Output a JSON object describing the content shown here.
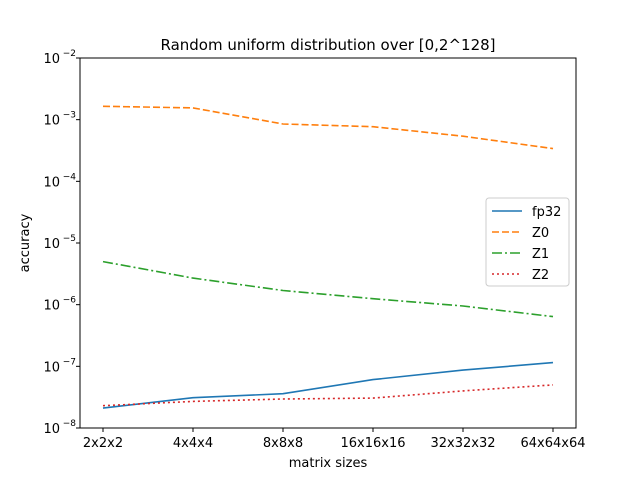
{
  "chart_data": {
    "type": "line",
    "title": "Random uniform distribution over [0,2^128]",
    "xlabel": "matrix sizes",
    "ylabel": "accuracy",
    "yscale": "log",
    "ylim": [
      1e-08,
      0.01
    ],
    "grid": false,
    "legend_position": "center-right",
    "categories": [
      "2x2x2",
      "4x4x4",
      "8x8x8",
      "16x16x16",
      "32x32x32",
      "64x64x64"
    ],
    "y_ticks": [
      {
        "value": 1e-08,
        "base": "10",
        "exp": "−8"
      },
      {
        "value": 1e-07,
        "base": "10",
        "exp": "−7"
      },
      {
        "value": 1e-06,
        "base": "10",
        "exp": "−6"
      },
      {
        "value": 1e-05,
        "base": "10",
        "exp": "−5"
      },
      {
        "value": 0.0001,
        "base": "10",
        "exp": "−4"
      },
      {
        "value": 0.001,
        "base": "10",
        "exp": "−3"
      },
      {
        "value": 0.01,
        "base": "10",
        "exp": "−2"
      }
    ],
    "series": [
      {
        "name": "fp32",
        "color": "#1f77b4",
        "dash": "solid",
        "values": [
          2.1e-08,
          3.1e-08,
          3.6e-08,
          6.1e-08,
          8.7e-08,
          1.15e-07
        ]
      },
      {
        "name": "Z0",
        "color": "#ff7f0e",
        "dash": "dashed",
        "values": [
          0.00165,
          0.00155,
          0.00085,
          0.00077,
          0.00054,
          0.00034
        ]
      },
      {
        "name": "Z1",
        "color": "#2ca02c",
        "dash": "dashdot",
        "values": [
          5e-06,
          2.7e-06,
          1.7e-06,
          1.25e-06,
          9.5e-07,
          6.4e-07
        ]
      },
      {
        "name": "Z2",
        "color": "#d62728",
        "dash": "dotted",
        "values": [
          2.3e-08,
          2.7e-08,
          2.95e-08,
          3.05e-08,
          4e-08,
          5e-08
        ]
      }
    ]
  }
}
